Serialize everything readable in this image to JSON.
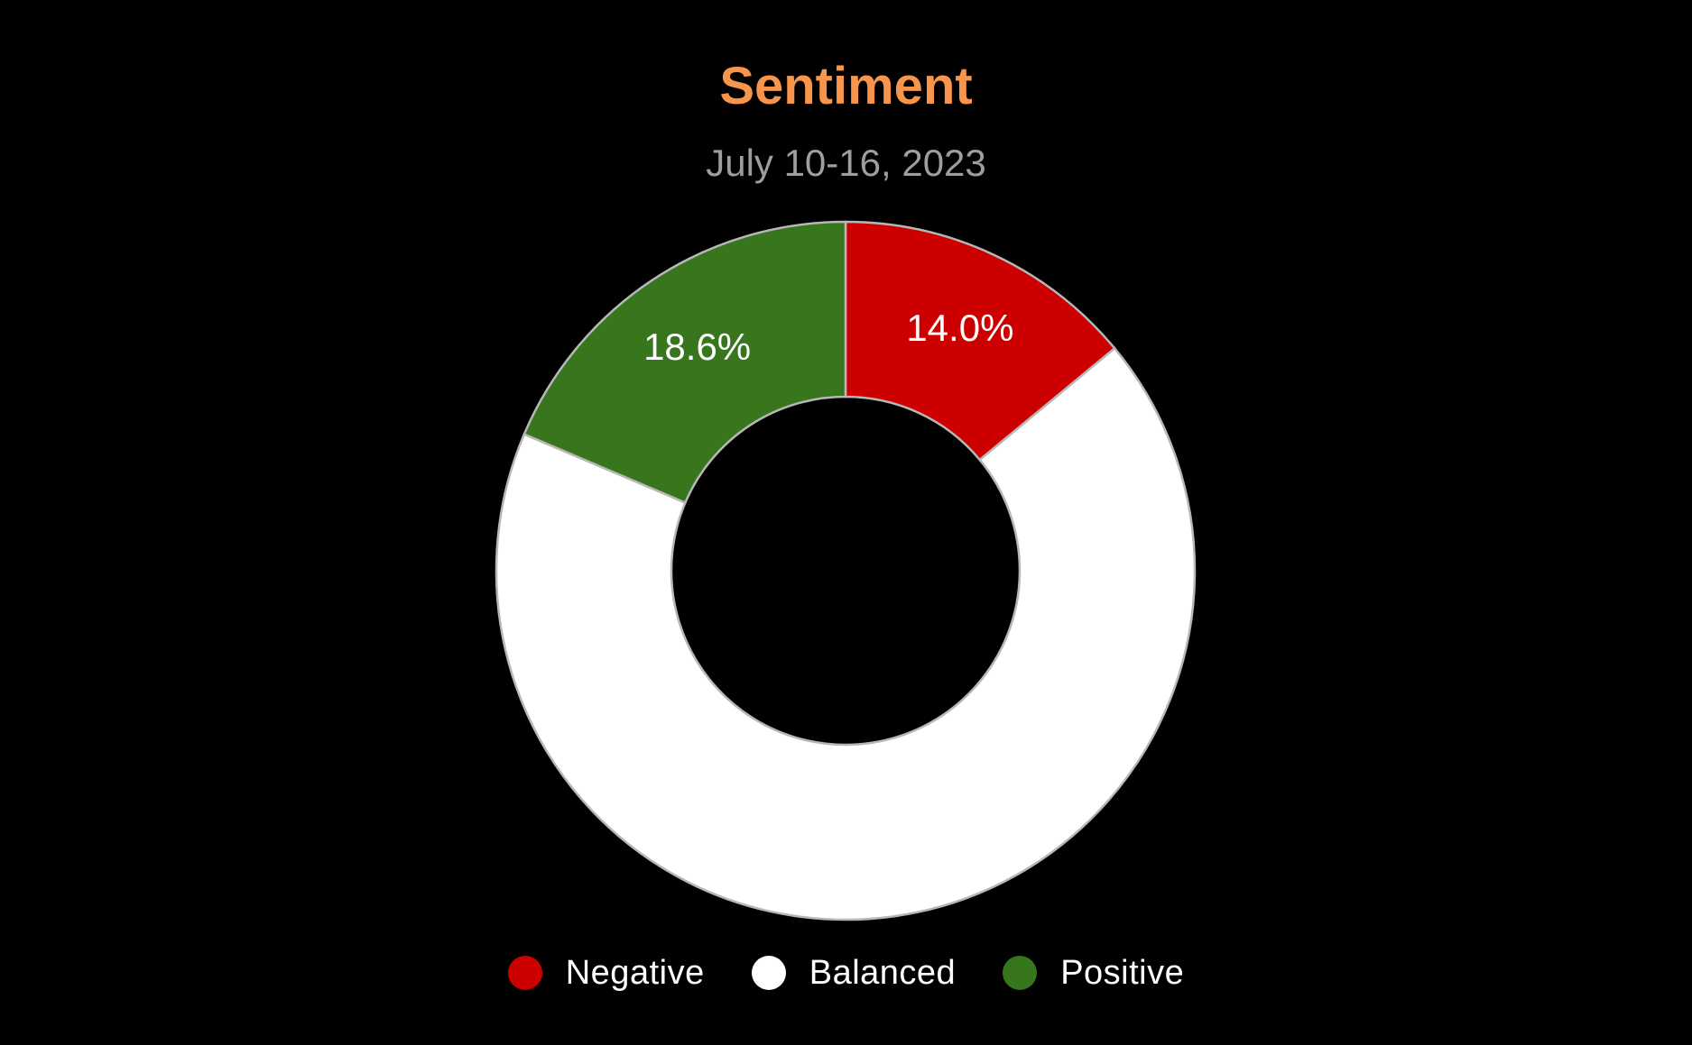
{
  "chart_data": {
    "type": "pie",
    "variant": "donut",
    "title": "Sentiment",
    "subtitle": "July 10-16, 2023",
    "slices": [
      {
        "label": "Negative",
        "value": 14.0,
        "display": "14.0%",
        "color": "#cc0000",
        "show_label": true
      },
      {
        "label": "Balanced",
        "value": 67.4,
        "display": "",
        "color": "#ffffff",
        "show_label": false
      },
      {
        "label": "Positive",
        "value": 18.6,
        "display": "18.6%",
        "color": "#38761d",
        "show_label": true
      }
    ],
    "legend_position": "bottom",
    "colors": {
      "title": "#f6954b",
      "subtitle": "#9e9e9e",
      "background": "#000000",
      "slice_border": "#b7b7b7",
      "label_text": "#ffffff"
    }
  }
}
